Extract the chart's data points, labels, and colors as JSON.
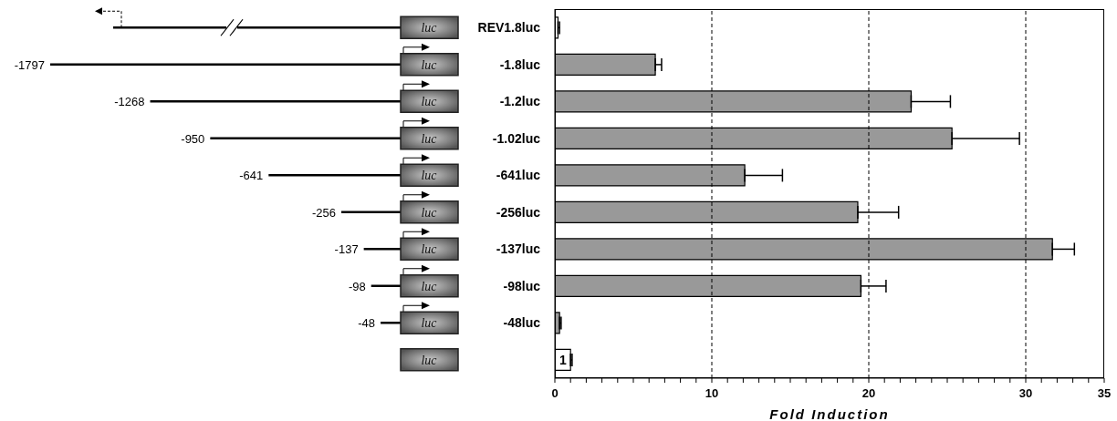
{
  "chart_data": {
    "type": "bar",
    "orientation": "horizontal",
    "xlabel": "Fold Induction",
    "categories": [
      "REV1.8luc",
      "-1.8luc",
      "-1.2luc",
      "-1.02luc",
      "-641luc",
      "-256luc",
      "-137luc",
      "-98luc",
      "-48luc",
      null
    ],
    "values": [
      0.2,
      6.4,
      22.7,
      25.3,
      12.1,
      19.3,
      31.7,
      19.5,
      0.3,
      1.0
    ],
    "errors": [
      [
        0.2,
        0.3
      ],
      [
        6.4,
        6.8
      ],
      [
        22.7,
        25.2
      ],
      [
        25.3,
        29.6
      ],
      [
        12.1,
        14.5
      ],
      [
        19.3,
        21.9
      ],
      [
        31.7,
        33.1
      ],
      [
        19.5,
        21.1
      ],
      [
        0.3,
        0.4
      ],
      [
        1.0,
        1.1
      ]
    ],
    "colors": [
      "#ffffff",
      "#999999",
      "#999999",
      "#999999",
      "#999999",
      "#999999",
      "#999999",
      "#999999",
      "#999999",
      "#ffffff"
    ],
    "value_labels": [
      null,
      null,
      null,
      null,
      null,
      null,
      null,
      null,
      null,
      "1"
    ],
    "xlim": [
      0,
      35
    ],
    "xticks": [
      0,
      {
        "value": 1,
        "label": null
      },
      {
        "value": 2,
        "label": null
      },
      {
        "value": 3,
        "label": null
      },
      {
        "value": 4,
        "label": null
      },
      {
        "value": 5,
        "label": null
      },
      {
        "value": 6,
        "label": null
      },
      {
        "value": 7,
        "label": null
      },
      {
        "value": 8,
        "label": null
      },
      {
        "value": 9,
        "label": null
      },
      10,
      {
        "value": 11,
        "label": null
      },
      {
        "value": 12,
        "label": null
      },
      {
        "value": 13,
        "label": null
      },
      {
        "value": 14,
        "label": null
      },
      {
        "value": 15,
        "label": null
      },
      {
        "value": 16,
        "label": null
      },
      {
        "value": 17,
        "label": null
      },
      {
        "value": 18,
        "label": null
      },
      {
        "value": 19,
        "label": null
      },
      20,
      {
        "value": 21,
        "label": null
      },
      {
        "value": 22,
        "label": null
      },
      {
        "value": 23,
        "label": null
      },
      {
        "value": 24,
        "label": null
      },
      {
        "value": 25,
        "label": null
      },
      {
        "value": 26,
        "label": null
      },
      {
        "value": 27,
        "label": null
      },
      {
        "value": 28,
        "label": null
      },
      {
        "value": 29,
        "label": null
      },
      30,
      {
        "value": 31,
        "label": null
      },
      {
        "value": 32,
        "label": null
      },
      {
        "value": 33,
        "label": null
      },
      {
        "value": 34,
        "label": null
      },
      35
    ],
    "ref_lines": [
      {
        "axis": "x",
        "value": 10,
        "line_style": "dashed",
        "color": "#000000"
      },
      {
        "axis": "x",
        "value": 20,
        "line_style": "dashed",
        "color": "#000000"
      },
      {
        "axis": "x",
        "value": 30,
        "line_style": "dashed",
        "color": "#000000"
      }
    ],
    "annotations": [
      "-1797",
      "-1268",
      "-950",
      "-641",
      "-256",
      "-137",
      "-98",
      "-48",
      "luc"
    ]
  }
}
